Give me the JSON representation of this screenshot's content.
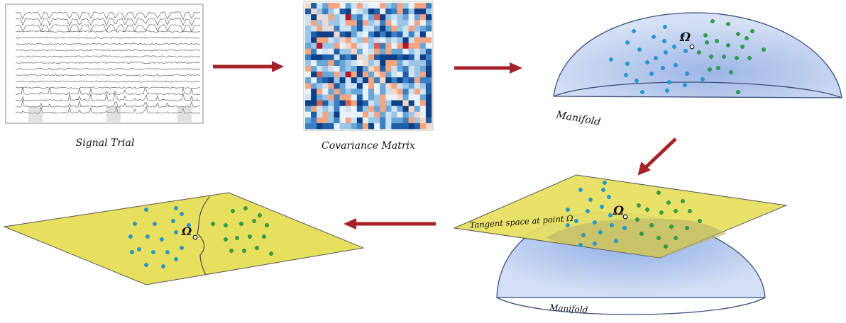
{
  "labels": {
    "signal_trial": "Signal Trial",
    "covariance_matrix": "Covariance Matrix",
    "manifold": "Manifold",
    "manifold_lower": "Manifold",
    "tangent_space": "Tangent space at point Ω",
    "omega": "Ω"
  },
  "colors": {
    "arrow": "#a6222a",
    "manifold_fill": "#c2d2ef",
    "plane_fill": "#e6e05e",
    "class_blue": "#1a9ee0",
    "class_green": "#27a84a"
  },
  "icons": [
    "eeg-signal-thumbnail",
    "covariance-heatmap",
    "manifold-dome",
    "tangent-plane"
  ]
}
